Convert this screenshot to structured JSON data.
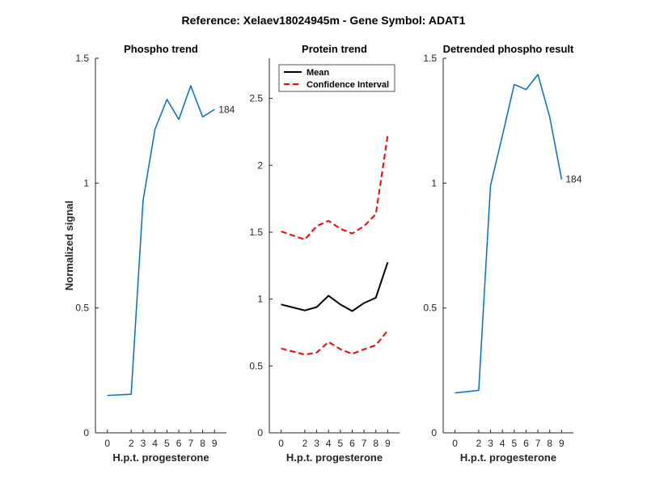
{
  "figure_title": "Reference:  Xelaev18024945m - Gene Symbol:  ADAT1",
  "colors": {
    "phospho": "#0072bd",
    "mean": "#000000",
    "ci": "#ff0000",
    "axis": "#262626"
  },
  "chart_data": [
    {
      "type": "line",
      "title": "Phospho trend",
      "xlabel": "H.p.t. progesterone",
      "ylabel": "Normalized signal",
      "x": [
        0,
        2,
        3,
        4,
        5,
        6,
        7,
        8,
        9
      ],
      "xticks": [
        "0",
        "2",
        "3",
        "4",
        "5",
        "6",
        "7",
        "8",
        "9"
      ],
      "ylim": [
        0,
        1.5
      ],
      "yticks": [
        0,
        0.5,
        1,
        1.5
      ],
      "ytick_labels": [
        "0",
        "0.5",
        "1",
        "1.5"
      ],
      "series": [
        {
          "values": [
            0.15,
            0.155,
            0.93,
            1.215,
            1.335,
            1.255,
            1.39,
            1.265,
            1.295
          ]
        }
      ],
      "end_label": "184"
    },
    {
      "type": "line",
      "title": "Protein trend",
      "xlabel": "H.p.t. progesterone",
      "ylabel": "",
      "x": [
        0,
        2,
        3,
        4,
        5,
        6,
        7,
        8,
        9
      ],
      "xticks": [
        "0",
        "2",
        "3",
        "4",
        "5",
        "6",
        "7",
        "8",
        "9"
      ],
      "ylim": [
        0,
        2.8
      ],
      "yticks": [
        0,
        0.5,
        1,
        1.5,
        2,
        2.5
      ],
      "ytick_labels": [
        "0",
        "0.5",
        "1",
        "1.5",
        "2",
        "2.5"
      ],
      "legend_position": "top-left",
      "series": [
        {
          "name": "Mean",
          "style": "solid",
          "values": [
            0.96,
            0.915,
            0.94,
            1.025,
            0.96,
            0.91,
            0.97,
            1.01,
            1.275
          ]
        },
        {
          "name": "Confidence Interval",
          "style": "dashed",
          "values": [
            1.505,
            1.445,
            1.545,
            1.585,
            1.525,
            1.49,
            1.545,
            1.635,
            2.225
          ]
        },
        {
          "style": "dashed",
          "values": [
            0.63,
            0.585,
            0.6,
            0.68,
            0.625,
            0.59,
            0.625,
            0.655,
            0.765
          ]
        }
      ]
    },
    {
      "type": "line",
      "title": "Detrended phospho result",
      "xlabel": "H.p.t. progesterone",
      "ylabel": "",
      "x": [
        0,
        2,
        3,
        4,
        5,
        6,
        7,
        8,
        9
      ],
      "xticks": [
        "0",
        "2",
        "3",
        "4",
        "5",
        "6",
        "7",
        "8",
        "9"
      ],
      "ylim": [
        0,
        1.5
      ],
      "yticks": [
        0,
        0.5,
        1,
        1.5
      ],
      "ytick_labels": [
        "0",
        "0.5",
        "1",
        "1.5"
      ],
      "series": [
        {
          "values": [
            0.16,
            0.17,
            0.99,
            1.19,
            1.395,
            1.375,
            1.435,
            1.265,
            1.015
          ]
        }
      ],
      "end_label": "184"
    }
  ]
}
